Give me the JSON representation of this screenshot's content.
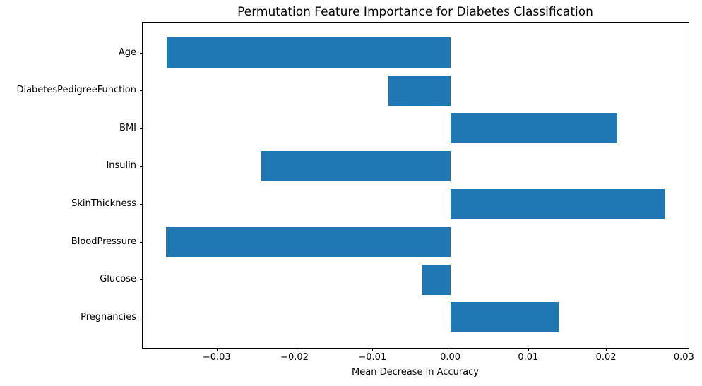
{
  "chart_data": {
    "type": "bar",
    "orientation": "horizontal",
    "title": "Permutation Feature Importance for Diabetes Classification",
    "xlabel": "Mean Decrease in Accuracy",
    "ylabel": "",
    "categories_top_to_bottom": [
      "Age",
      "DiabetesPedigreeFunction",
      "BMI",
      "Insulin",
      "SkinThickness",
      "BloodPressure",
      "Glucose",
      "Pregnancies"
    ],
    "values_top_to_bottom": [
      -0.0364,
      -0.0079,
      0.0214,
      -0.0244,
      0.0275,
      -0.0365,
      -0.0037,
      0.0139
    ],
    "xlim": [
      -0.0395,
      0.0306
    ],
    "x_ticks": [
      -0.03,
      -0.02,
      -0.01,
      0.0,
      0.01,
      0.02,
      0.03
    ],
    "x_tick_labels": [
      "−0.03",
      "−0.02",
      "−0.01",
      "0.00",
      "0.01",
      "0.02",
      "0.03"
    ],
    "bar_color": "#1f77b4",
    "grid": false,
    "legend": "none",
    "plot_background": "#ffffff"
  }
}
